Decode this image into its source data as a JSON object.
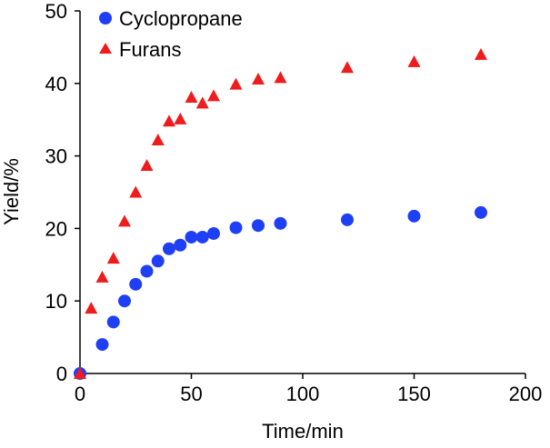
{
  "chart_data": {
    "type": "scatter",
    "title": "",
    "xlabel": "Time/min",
    "ylabel": "Yield/%",
    "xlim": [
      0,
      200
    ],
    "ylim": [
      0,
      50
    ],
    "xticks": [
      0,
      50,
      100,
      150,
      200
    ],
    "yticks": [
      0,
      10,
      20,
      30,
      40,
      50
    ],
    "grid": false,
    "legend_position": "top-left",
    "series": [
      {
        "name": "Cyclopropane",
        "marker": "circle",
        "color": "#1f3ff5",
        "x": [
          0,
          10,
          15,
          20,
          25,
          30,
          35,
          40,
          45,
          50,
          55,
          60,
          70,
          80,
          90,
          120,
          150,
          180
        ],
        "y": [
          0,
          4,
          7.1,
          10,
          12.3,
          14.1,
          15.5,
          17.2,
          17.7,
          18.8,
          18.8,
          19.3,
          20.1,
          20.4,
          20.7,
          21.2,
          21.7,
          22.2
        ]
      },
      {
        "name": "Furans",
        "marker": "triangle",
        "color": "#ee1c1c",
        "x": [
          0,
          5,
          10,
          15,
          20,
          25,
          30,
          35,
          40,
          45,
          50,
          55,
          60,
          70,
          80,
          90,
          120,
          150,
          180
        ],
        "y": [
          0,
          9,
          13.3,
          15.9,
          21,
          25,
          28.7,
          32.2,
          34.8,
          35.1,
          38.1,
          37.3,
          38.3,
          39.9,
          40.6,
          40.8,
          42.2,
          43,
          44
        ]
      }
    ]
  }
}
